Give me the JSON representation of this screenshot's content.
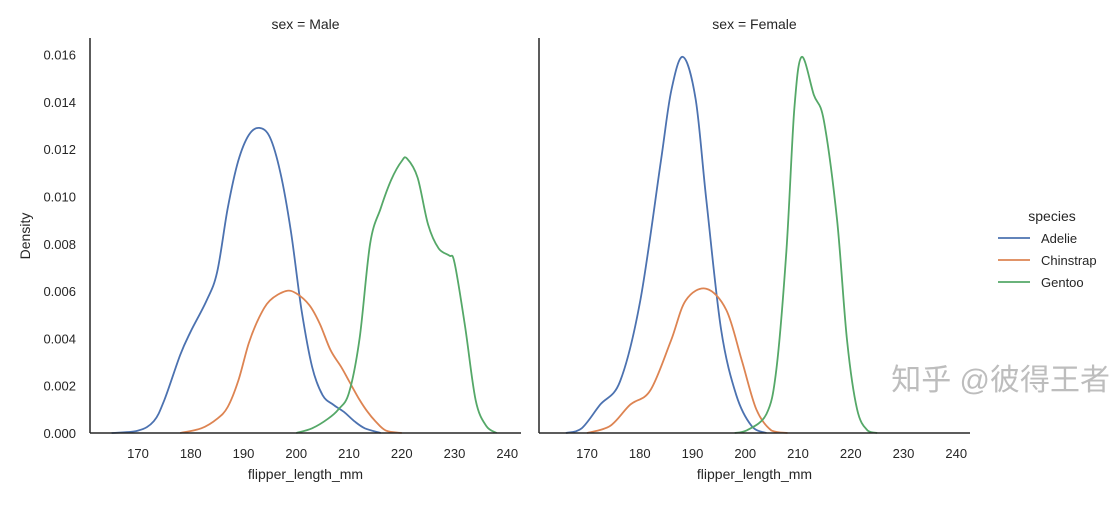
{
  "chart_data": {
    "type": "line",
    "ylabel": "Density",
    "xlabel": "flipper_length_mm",
    "xlim": [
      160.9,
      242.6
    ],
    "ylim": [
      0,
      0.0167
    ],
    "xticks": [
      170,
      180,
      190,
      200,
      210,
      220,
      230,
      240
    ],
    "yticks": [
      "0.000",
      "0.002",
      "0.004",
      "0.006",
      "0.008",
      "0.010",
      "0.012",
      "0.014",
      "0.016"
    ],
    "grid": false,
    "legend": {
      "title": "species",
      "placement": "right",
      "entries": [
        "Adelie",
        "Chinstrap",
        "Gentoo"
      ]
    },
    "colors": {
      "Adelie": "#4c72b0",
      "Chinstrap": "#dd8452",
      "Gentoo": "#55a868"
    },
    "panels": [
      {
        "title": "sex = Male",
        "series": [
          {
            "name": "Adelie",
            "x": [
              165,
              170,
              173,
              175,
              178,
              180,
              183,
              185,
              187,
              189,
              191,
              193,
              195,
              197,
              199,
              201,
              203,
              205,
              207,
              209,
              211,
              213,
              216
            ],
            "y": [
              0,
              0.0001,
              0.0005,
              0.0014,
              0.0033,
              0.0043,
              0.0056,
              0.0068,
              0.0095,
              0.0115,
              0.0126,
              0.0129,
              0.0125,
              0.011,
              0.0085,
              0.0052,
              0.0028,
              0.0016,
              0.0012,
              0.0009,
              0.0005,
              0.0002,
              0
            ]
          },
          {
            "name": "Chinstrap",
            "x": [
              178,
              182,
              185,
              187,
              189,
              191,
              193,
              195,
              198,
              200,
              202.5,
              204.5,
              206.5,
              208.5,
              210,
              212,
              213.5,
              215,
              217,
              220
            ],
            "y": [
              0,
              0.0002,
              0.0006,
              0.0011,
              0.0022,
              0.0038,
              0.0049,
              0.0056,
              0.006,
              0.0059,
              0.0054,
              0.0046,
              0.0035,
              0.0028,
              0.0022,
              0.0014,
              0.0009,
              0.0005,
              0.0001,
              0
            ]
          },
          {
            "name": "Gentoo",
            "x": [
              200,
              203,
              206,
              208,
              210,
              212,
              214,
              216,
              218,
              220,
              221,
              223,
              225,
              227,
              229,
              230,
              232,
              234,
              236,
              238
            ],
            "y": [
              0,
              0.0002,
              0.0006,
              0.001,
              0.0017,
              0.004,
              0.008,
              0.0095,
              0.0107,
              0.0115,
              0.0116,
              0.0108,
              0.0088,
              0.0078,
              0.0075,
              0.0072,
              0.0045,
              0.0014,
              0.0003,
              0
            ]
          }
        ]
      },
      {
        "title": "sex = Female",
        "series": [
          {
            "name": "Adelie",
            "x": [
              166,
              169,
              172.5,
              176.3,
              180.1,
              184,
              186,
              188.2,
              190.6,
              192.6,
              195.4,
              198.3,
              201.2,
              204
            ],
            "y": [
              0,
              0.0002,
              0.0012,
              0.0022,
              0.0056,
              0.0115,
              0.0145,
              0.0159,
              0.0141,
              0.0099,
              0.0044,
              0.0016,
              0.0003,
              0
            ]
          },
          {
            "name": "Chinstrap",
            "x": [
              170,
              174.4,
              178.2,
              182,
              185.9,
              188.7,
              192.6,
              196.4,
              199.3,
              202.1,
              205,
              208
            ],
            "y": [
              0,
              0.0003,
              0.0012,
              0.0018,
              0.0039,
              0.0056,
              0.0061,
              0.0052,
              0.0031,
              0.001,
              0.0001,
              0
            ]
          },
          {
            "name": "Gentoo",
            "x": [
              198,
              200.2,
              204,
              205.9,
              207.8,
              209.3,
              210.7,
              213,
              214.9,
              217.4,
              219.3,
              221.2,
              223.2,
              225
            ],
            "y": [
              0,
              0.0001,
              0.0008,
              0.0027,
              0.0077,
              0.0137,
              0.0159,
              0.0143,
              0.0132,
              0.009,
              0.0039,
              0.001,
              0.0001,
              0
            ]
          }
        ]
      }
    ]
  },
  "watermark": "知乎 @彼得王者"
}
